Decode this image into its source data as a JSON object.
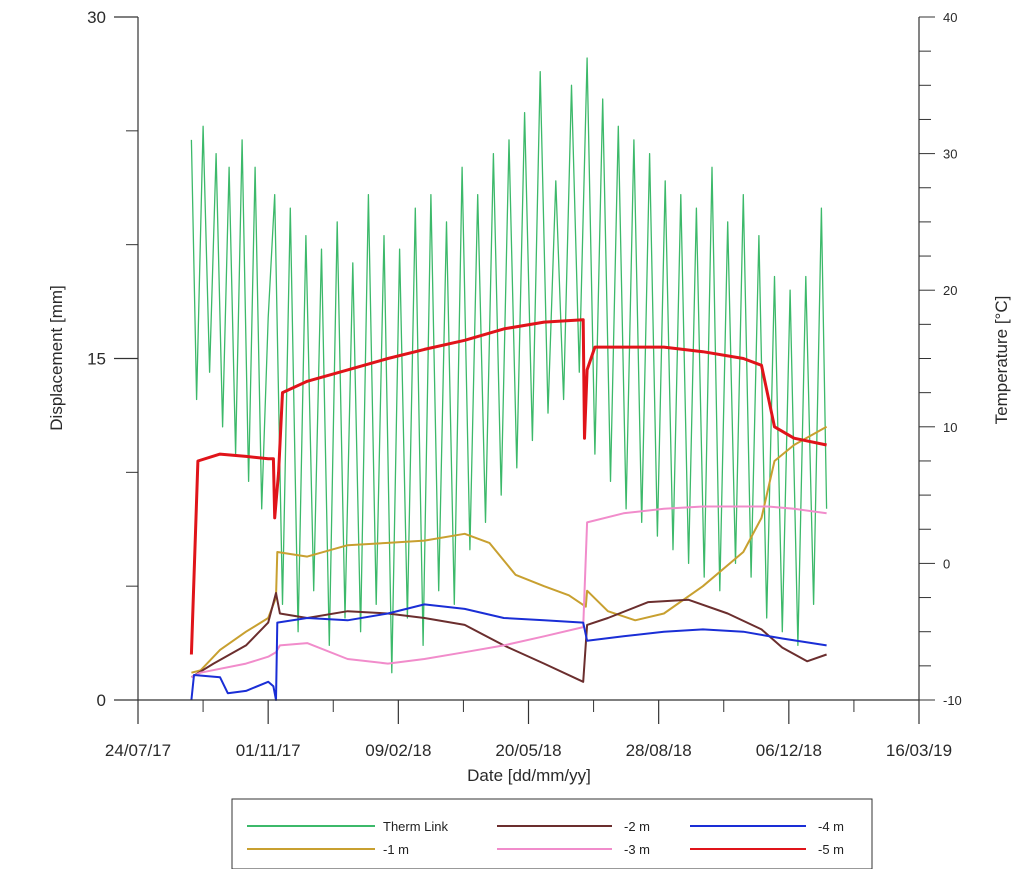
{
  "chart_data": {
    "type": "line",
    "xlabel": "Date [dd/mm/yy]",
    "ylabel": "Displacement [mm]",
    "y2label": "Temperature [°C]",
    "x_ticks": [
      "24/07/17",
      "01/11/17",
      "09/02/18",
      "20/05/18",
      "28/08/18",
      "06/12/18",
      "16/03/19"
    ],
    "xlim": [
      "2017-07-24",
      "2019-03-16"
    ],
    "ylim": [
      0,
      30
    ],
    "y_ticks": [
      "0",
      "15",
      "30"
    ],
    "y2lim": [
      -10,
      40
    ],
    "y2_ticks": [
      "-10",
      "0",
      "10",
      "20",
      "30",
      "40"
    ],
    "grid": false,
    "legend_position": "bottom",
    "series": [
      {
        "name": "Therm Link",
        "axis": "right",
        "color": "#3cb96a",
        "x": [
          "2017-09-03",
          "2017-09-07",
          "2017-09-12",
          "2017-09-17",
          "2017-09-22",
          "2017-09-27",
          "2017-10-02",
          "2017-10-07",
          "2017-10-12",
          "2017-10-17",
          "2017-10-22",
          "2017-10-27",
          "2017-11-01",
          "2017-11-06",
          "2017-11-12",
          "2017-11-18",
          "2017-11-24",
          "2017-11-30",
          "2017-12-06",
          "2017-12-12",
          "2017-12-18",
          "2017-12-24",
          "2017-12-30",
          "2018-01-05",
          "2018-01-11",
          "2018-01-17",
          "2018-01-23",
          "2018-01-29",
          "2018-02-04",
          "2018-02-10",
          "2018-02-16",
          "2018-02-22",
          "2018-02-28",
          "2018-03-06",
          "2018-03-12",
          "2018-03-18",
          "2018-03-24",
          "2018-03-30",
          "2018-04-05",
          "2018-04-11",
          "2018-04-17",
          "2018-04-23",
          "2018-04-29",
          "2018-05-05",
          "2018-05-11",
          "2018-05-17",
          "2018-05-23",
          "2018-05-29",
          "2018-06-04",
          "2018-06-10",
          "2018-06-16",
          "2018-06-22",
          "2018-06-28",
          "2018-07-04",
          "2018-07-10",
          "2018-07-16",
          "2018-07-22",
          "2018-07-28",
          "2018-08-03",
          "2018-08-09",
          "2018-08-15",
          "2018-08-21",
          "2018-08-27",
          "2018-09-02",
          "2018-09-08",
          "2018-09-14",
          "2018-09-20",
          "2018-09-26",
          "2018-10-02",
          "2018-10-08",
          "2018-10-14",
          "2018-10-20",
          "2018-10-26",
          "2018-11-01",
          "2018-11-07",
          "2018-11-13",
          "2018-11-19",
          "2018-11-25",
          "2018-12-01",
          "2018-12-07",
          "2018-12-13",
          "2018-12-19",
          "2018-12-25",
          "2018-12-31",
          "2019-01-04"
        ],
        "values": [
          31,
          12,
          32,
          14,
          30,
          10,
          29,
          8,
          31,
          6,
          29,
          4,
          18,
          27,
          -3,
          26,
          -5,
          24,
          -2,
          23,
          -6,
          25,
          -4,
          22,
          -5,
          27,
          -3,
          24,
          -8,
          23,
          -4,
          26,
          -6,
          27,
          -2,
          25,
          -3,
          29,
          1,
          27,
          3,
          30,
          5,
          31,
          7,
          33,
          9,
          36,
          11,
          28,
          12,
          35,
          14,
          37,
          8,
          34,
          6,
          32,
          4,
          31,
          3,
          30,
          2,
          28,
          1,
          27,
          0,
          26,
          -1,
          29,
          -2,
          25,
          0,
          27,
          -1,
          24,
          -4,
          21,
          -5,
          20,
          -6,
          21,
          -3,
          26,
          4
        ],
        "visible_range": [
          -7,
          39
        ]
      },
      {
        "name": "-1 m",
        "axis": "left",
        "color": "#c8a030",
        "x": [
          "2017-09-03",
          "2017-09-10",
          "2017-09-25",
          "2017-10-15",
          "2017-11-01",
          "2017-11-07",
          "2017-11-08",
          "2017-12-01",
          "2018-01-01",
          "2018-02-01",
          "2018-03-01",
          "2018-04-01",
          "2018-04-20",
          "2018-05-10",
          "2018-06-01",
          "2018-06-20",
          "2018-07-03",
          "2018-07-04",
          "2018-07-20",
          "2018-08-10",
          "2018-09-01",
          "2018-10-01",
          "2018-11-01",
          "2018-11-15",
          "2018-11-25",
          "2018-12-10",
          "2019-01-04"
        ],
        "values": [
          1.2,
          1.3,
          2.2,
          3.0,
          3.6,
          4.5,
          6.5,
          6.3,
          6.8,
          6.9,
          7.0,
          7.3,
          6.9,
          5.5,
          5.0,
          4.6,
          4.1,
          4.8,
          3.9,
          3.5,
          3.8,
          5.0,
          6.5,
          8.0,
          10.5,
          11.2,
          12.0
        ]
      },
      {
        "name": "-2 m",
        "axis": "left",
        "color": "#6b2e2e",
        "x": [
          "2017-09-03",
          "2017-09-20",
          "2017-10-15",
          "2017-11-01",
          "2017-11-07",
          "2017-11-10",
          "2017-12-01",
          "2018-01-01",
          "2018-02-01",
          "2018-03-01",
          "2018-04-01",
          "2018-05-01",
          "2018-06-01",
          "2018-07-01",
          "2018-07-04",
          "2018-07-20",
          "2018-08-20",
          "2018-09-20",
          "2018-10-20",
          "2018-11-15",
          "2018-12-01",
          "2018-12-20",
          "2019-01-04"
        ],
        "values": [
          1.0,
          1.6,
          2.4,
          3.4,
          4.7,
          3.8,
          3.6,
          3.9,
          3.8,
          3.6,
          3.3,
          2.4,
          1.6,
          0.8,
          3.3,
          3.6,
          4.3,
          4.4,
          3.8,
          3.1,
          2.3,
          1.7,
          2.0
        ]
      },
      {
        "name": "-3 m",
        "axis": "left",
        "color": "#f18ccb",
        "x": [
          "2017-09-03",
          "2017-09-10",
          "2017-10-15",
          "2017-11-01",
          "2017-11-07",
          "2017-11-10",
          "2017-12-01",
          "2018-01-01",
          "2018-02-01",
          "2018-03-01",
          "2018-04-01",
          "2018-05-01",
          "2018-06-01",
          "2018-07-01",
          "2018-07-04",
          "2018-08-01",
          "2018-09-01",
          "2018-10-01",
          "2018-11-01",
          "2018-11-20",
          "2018-12-10",
          "2019-01-04"
        ],
        "values": [
          1.0,
          1.2,
          1.6,
          1.9,
          2.1,
          2.4,
          2.5,
          1.8,
          1.6,
          1.8,
          2.1,
          2.4,
          2.8,
          3.2,
          7.8,
          8.2,
          8.4,
          8.5,
          8.5,
          8.5,
          8.4,
          8.2
        ]
      },
      {
        "name": "-4 m",
        "axis": "left",
        "color": "#1a2ed6",
        "x": [
          "2017-09-03",
          "2017-09-05",
          "2017-09-25",
          "2017-10-01",
          "2017-10-15",
          "2017-11-01",
          "2017-11-05",
          "2017-11-07",
          "2017-11-08",
          "2017-12-01",
          "2018-01-01",
          "2018-02-01",
          "2018-03-01",
          "2018-04-01",
          "2018-05-01",
          "2018-06-01",
          "2018-07-01",
          "2018-07-04",
          "2018-08-01",
          "2018-09-01",
          "2018-10-01",
          "2018-11-01",
          "2018-12-01",
          "2019-01-04"
        ],
        "values": [
          0.0,
          1.1,
          1.0,
          0.3,
          0.4,
          0.8,
          0.6,
          0.0,
          3.4,
          3.6,
          3.5,
          3.8,
          4.2,
          4.0,
          3.6,
          3.5,
          3.4,
          2.6,
          2.8,
          3.0,
          3.1,
          3.0,
          2.7,
          2.4
        ]
      },
      {
        "name": "-5 m",
        "axis": "left",
        "color": "#e0141a",
        "x": [
          "2017-09-03",
          "2017-09-08",
          "2017-09-25",
          "2017-10-15",
          "2017-11-01",
          "2017-11-05",
          "2017-11-06",
          "2017-11-09",
          "2017-11-12",
          "2017-12-01",
          "2018-01-01",
          "2018-02-01",
          "2018-03-01",
          "2018-04-01",
          "2018-05-01",
          "2018-06-01",
          "2018-07-01",
          "2018-07-02",
          "2018-07-04",
          "2018-07-10",
          "2018-08-01",
          "2018-09-01",
          "2018-10-01",
          "2018-11-01",
          "2018-11-15",
          "2018-11-25",
          "2018-12-10",
          "2019-01-04"
        ],
        "values": [
          2.0,
          10.5,
          10.8,
          10.7,
          10.6,
          10.6,
          8.0,
          10.0,
          13.5,
          14.0,
          14.5,
          15.0,
          15.4,
          15.8,
          16.3,
          16.6,
          16.7,
          11.5,
          14.5,
          15.5,
          15.5,
          15.5,
          15.3,
          15.0,
          14.7,
          12.0,
          11.5,
          11.2
        ]
      }
    ]
  }
}
